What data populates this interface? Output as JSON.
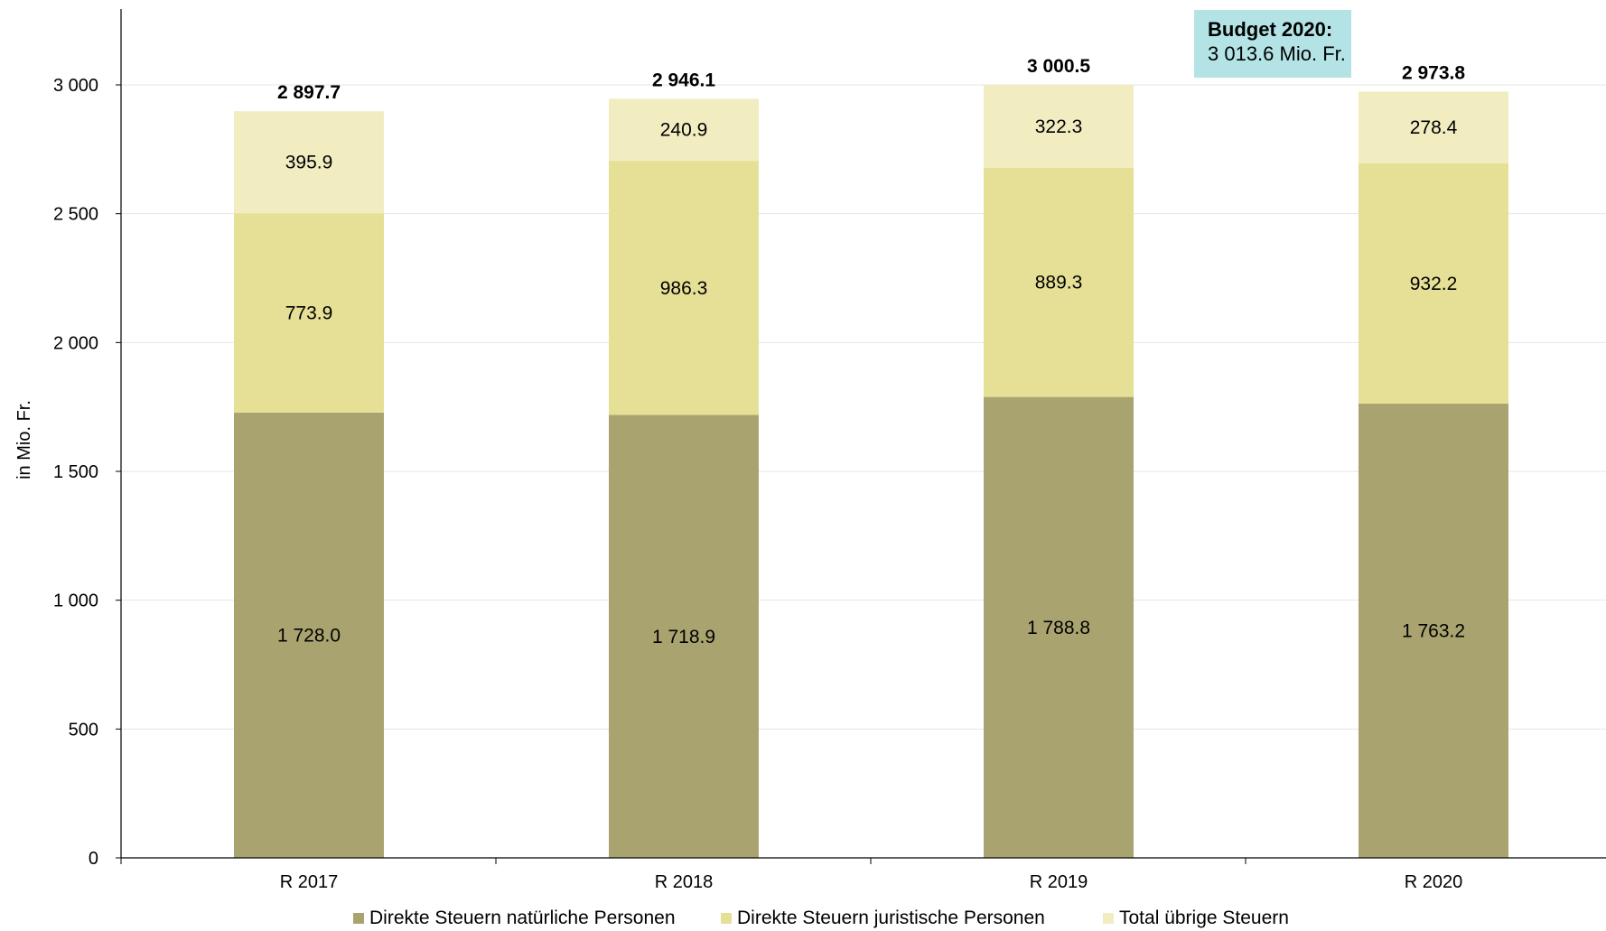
{
  "chart_data": {
    "type": "bar",
    "stacked": true,
    "categories": [
      "R 2017",
      "R 2018",
      "R 2019",
      "R 2020"
    ],
    "series": [
      {
        "name": "Direkte Steuern natürliche Personen",
        "values": [
          1728.0,
          1718.9,
          1788.8,
          1763.2
        ],
        "labels": [
          "1 728.0",
          "1 718.9",
          "1 788.8",
          "1 763.2"
        ],
        "color": "#a9a46f"
      },
      {
        "name": "Direkte Steuern juristische Personen",
        "values": [
          773.9,
          986.3,
          889.3,
          932.2
        ],
        "labels": [
          "773.9",
          "986.3",
          "889.3",
          "932.2"
        ],
        "color": "#e6df96"
      },
      {
        "name": "Total übrige Steuern",
        "values": [
          395.9,
          240.9,
          322.3,
          278.4
        ],
        "labels": [
          "395.9",
          "240.9",
          "322.3",
          "278.4"
        ],
        "color": "#f1edc1"
      }
    ],
    "totals": [
      "2 897.7",
      "2 946.1",
      "3 000.5",
      "2 973.8"
    ],
    "ylabel": "in Mio. Fr.",
    "ylim": [
      0,
      3300
    ],
    "yticks": [
      0,
      500,
      1000,
      1500,
      2000,
      2500,
      3000
    ],
    "ytick_labels": [
      "0",
      "500",
      "1 000",
      "1 500",
      "2 000",
      "2 500",
      "3 000"
    ],
    "grid": true,
    "legend_position": "bottom",
    "annotation": {
      "title": "Budget 2020:",
      "value": "3 013.6 Mio. Fr.",
      "color": "#b4e3e5"
    }
  }
}
